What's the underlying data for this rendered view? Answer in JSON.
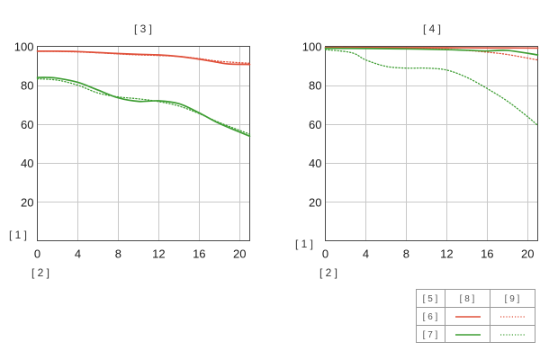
{
  "chart_data": [
    {
      "type": "line",
      "title": "[ 3 ]",
      "xlabel": "[ 2 ]",
      "ylabel": "[ 1 ]",
      "xlim": [
        0,
        21
      ],
      "ylim": [
        0,
        100
      ],
      "x_ticks": [
        "0",
        "4",
        "8",
        "12",
        "16",
        "20"
      ],
      "y_ticks": [
        "20",
        "40",
        "60",
        "80",
        "100"
      ],
      "grid": true,
      "series": [
        {
          "group": "[ 6 ]",
          "style": "[ 8 ]",
          "color": "#e0503a",
          "dashed": false,
          "x": [
            0,
            2,
            4,
            6,
            8,
            10,
            12,
            14,
            16,
            18,
            19,
            21
          ],
          "y": [
            97.5,
            97.5,
            97.3,
            96.8,
            96.3,
            95.9,
            95.6,
            94.8,
            93.4,
            91.6,
            90.9,
            90.7
          ]
        },
        {
          "group": "[ 6 ]",
          "style": "[ 9 ]",
          "color": "#e0503a",
          "dashed": true,
          "x": [
            0,
            2,
            4,
            6,
            8,
            10,
            12,
            14,
            16,
            18,
            21
          ],
          "y": [
            97.5,
            97.4,
            97.1,
            96.7,
            96.1,
            95.6,
            95.3,
            94.8,
            93.7,
            92.3,
            91.3
          ]
        },
        {
          "group": "[ 7 ]",
          "style": "[ 8 ]",
          "color": "#3f9e34",
          "dashed": false,
          "x": [
            0,
            1,
            2,
            4,
            6,
            8,
            10,
            12,
            14,
            16,
            18,
            21
          ],
          "y": [
            84,
            84,
            83.6,
            81.5,
            77.5,
            73.5,
            71.7,
            72,
            70.5,
            65.8,
            60.3,
            53.8
          ]
        },
        {
          "group": "[ 7 ]",
          "style": "[ 9 ]",
          "color": "#3f9e34",
          "dashed": true,
          "x": [
            0,
            2,
            4,
            6,
            8,
            10,
            12,
            14,
            16,
            18,
            21
          ],
          "y": [
            83.3,
            82.6,
            80,
            76,
            74,
            73,
            71.6,
            69.3,
            65.4,
            60.8,
            54.8
          ]
        }
      ]
    },
    {
      "type": "line",
      "title": "[ 4 ]",
      "xlabel": "[ 2 ]",
      "ylabel": "[ 1 ]",
      "xlim": [
        0,
        21
      ],
      "ylim": [
        0,
        100
      ],
      "x_ticks": [
        "0",
        "4",
        "8",
        "12",
        "16",
        "20"
      ],
      "y_ticks": [
        "20",
        "40",
        "60",
        "80",
        "100"
      ],
      "grid": true,
      "series": [
        {
          "group": "[ 6 ]",
          "style": "[ 8 ]",
          "color": "#e0503a",
          "dashed": false,
          "x": [
            0,
            4,
            8,
            12,
            16,
            18,
            21
          ],
          "y": [
            99.4,
            99.4,
            99.3,
            99.3,
            99.2,
            99.2,
            99.1
          ]
        },
        {
          "group": "[ 6 ]",
          "style": "[ 9 ]",
          "color": "#e0503a",
          "dashed": true,
          "x": [
            0,
            4,
            8,
            12,
            14,
            16,
            18,
            21
          ],
          "y": [
            99.3,
            99.2,
            98.9,
            98.5,
            97.9,
            97,
            95.8,
            93
          ]
        },
        {
          "group": "[ 7 ]",
          "style": "[ 8 ]",
          "color": "#3f9e34",
          "dashed": false,
          "x": [
            0,
            4,
            8,
            12,
            14,
            16,
            18,
            21
          ],
          "y": [
            99,
            98.9,
            98.7,
            98.3,
            98,
            97.6,
            97.9,
            95.6
          ]
        },
        {
          "group": "[ 7 ]",
          "style": "[ 9 ]",
          "color": "#3f9e34",
          "dashed": true,
          "x": [
            0,
            2,
            3,
            4,
            6,
            8,
            10,
            12,
            14,
            16,
            18,
            20,
            21
          ],
          "y": [
            98.3,
            97.3,
            96,
            93,
            89.7,
            88.8,
            88.8,
            87.8,
            84,
            78.3,
            71.8,
            63.8,
            59.3
          ]
        }
      ]
    }
  ],
  "legend": {
    "header": [
      "[ 5 ]",
      "[ 8 ]",
      "[ 9 ]"
    ],
    "rows": [
      {
        "label": "[ 6 ]",
        "color": "#e0503a"
      },
      {
        "label": "[ 7 ]",
        "color": "#3f9e34"
      }
    ]
  }
}
